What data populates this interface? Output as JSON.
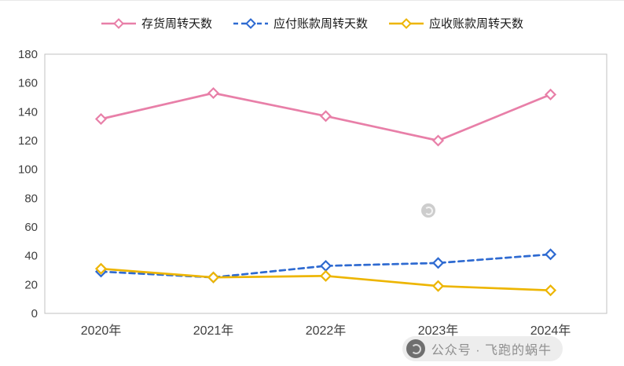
{
  "watermark": {
    "text": "公众号 · 飞跑的蜗牛"
  },
  "chart_data": {
    "type": "line",
    "title": "",
    "xlabel": "",
    "ylabel": "",
    "categories": [
      "2020年",
      "2021年",
      "2022年",
      "2023年",
      "2024年"
    ],
    "series": [
      {
        "name": "存货周转天数",
        "color": "#E87FA8",
        "dash": "solid",
        "values": [
          135,
          153,
          137,
          120,
          152
        ]
      },
      {
        "name": "应付账款周转天数",
        "color": "#2E6AD1",
        "dash": "dashed",
        "values": [
          29,
          25,
          33,
          35,
          41
        ]
      },
      {
        "name": "应收账款周转天数",
        "color": "#EDB500",
        "dash": "solid",
        "values": [
          31,
          25,
          26,
          19,
          16
        ]
      }
    ],
    "ylim": [
      0,
      180
    ],
    "ytick_step": 20,
    "grid": false,
    "legend_position": "top",
    "marker": "diamond",
    "plot_border_color": "#c0c0c0"
  }
}
